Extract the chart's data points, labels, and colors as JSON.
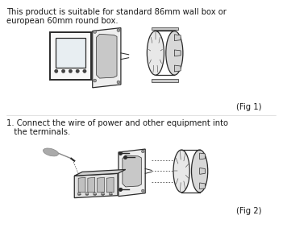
{
  "background_color": "#ffffff",
  "text1_line1": "This product is suitable for standard 86mm wall box or",
  "text1_line2": "european 60mm round box.",
  "text2_line1": "1. Connect the wire of power and other equipment into",
  "text2_line2": "   the terminals.",
  "fig1_label": "(Fig 1)",
  "fig2_label": "(Fig 2)",
  "text_color": "#1a1a1a",
  "line_color": "#2a2a2a",
  "fig_width": 3.56,
  "fig_height": 2.88,
  "dpi": 100,
  "lw_main": 0.9,
  "lw_thin": 0.5,
  "lw_thick": 1.4
}
